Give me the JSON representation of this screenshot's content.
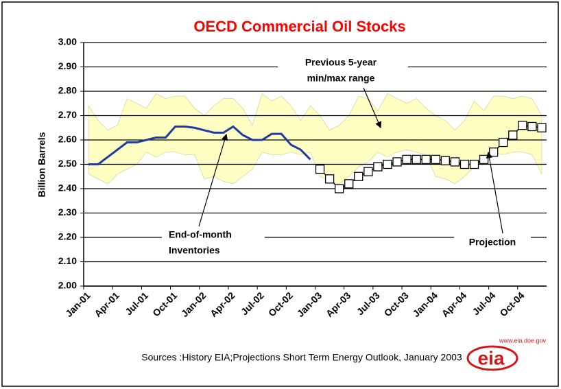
{
  "chart_data": {
    "type": "line",
    "title": "OECD Commercial Oil Stocks",
    "ylabel": "Billion Barrels",
    "categories": [
      "Jan-01",
      null,
      null,
      "Apr-01",
      null,
      null,
      "Jul-01",
      null,
      null,
      "Oct-01",
      null,
      null,
      "Jan-02",
      null,
      null,
      "Apr-02",
      null,
      null,
      "Jul-02",
      null,
      null,
      "Oct-02",
      null,
      null,
      "Jan-03",
      null,
      null,
      "Apr-03",
      null,
      null,
      "Jul-03",
      null,
      null,
      "Oct-03",
      null,
      null,
      "Jan-04",
      null,
      null,
      "Apr-04",
      null,
      null,
      "Jul-04",
      null,
      null,
      "Oct-04",
      null,
      null
    ],
    "range": {
      "color": "#ffffc4",
      "max": [
        2.74,
        2.68,
        2.64,
        2.66,
        2.77,
        2.75,
        2.73,
        2.79,
        2.77,
        2.78,
        2.78,
        2.73,
        2.7,
        2.74,
        2.77,
        2.77,
        2.73,
        2.66,
        2.79,
        2.76,
        2.78,
        2.74,
        2.68,
        2.74,
        2.7,
        2.64,
        2.66,
        2.7,
        2.78,
        2.77,
        2.72,
        2.79,
        2.77,
        2.75,
        2.77,
        2.73,
        2.7,
        2.68,
        2.64,
        2.68,
        2.76,
        2.72,
        2.78,
        2.78,
        2.77,
        2.78,
        2.77,
        2.7
      ],
      "min": [
        2.46,
        2.44,
        2.42,
        2.46,
        2.48,
        2.5,
        2.55,
        2.53,
        2.55,
        2.55,
        2.54,
        2.54,
        2.44,
        2.45,
        2.43,
        2.42,
        2.45,
        2.48,
        2.55,
        2.54,
        2.54,
        2.55,
        2.54,
        2.55,
        2.45,
        2.43,
        2.42,
        2.45,
        2.49,
        2.51,
        2.55,
        2.53,
        2.55,
        2.56,
        2.55,
        2.54,
        2.45,
        2.44,
        2.42,
        2.45,
        2.49,
        2.52,
        2.55,
        2.54,
        2.55,
        2.55,
        2.54,
        2.46
      ]
    },
    "series": [
      {
        "color": "#1f3aa0",
        "marker": "none",
        "values": [
          2.5,
          2.5,
          2.53,
          2.56,
          2.59,
          2.59,
          2.6,
          2.61,
          2.61,
          2.655,
          2.655,
          2.65,
          2.64,
          2.63,
          2.63,
          2.655,
          2.62,
          2.6,
          2.6,
          2.625,
          2.625,
          2.58,
          2.56,
          2.52,
          null,
          null,
          null,
          null,
          null,
          null,
          null,
          null,
          null,
          null,
          null,
          null,
          null,
          null,
          null,
          null,
          null,
          null,
          null,
          null,
          null,
          null,
          null,
          null
        ]
      },
      {
        "color": "#000000",
        "marker": "square",
        "values": [
          null,
          null,
          null,
          null,
          null,
          null,
          null,
          null,
          null,
          null,
          null,
          null,
          null,
          null,
          null,
          null,
          null,
          null,
          null,
          null,
          null,
          null,
          null,
          null,
          2.48,
          2.44,
          2.4,
          2.42,
          2.45,
          2.47,
          2.49,
          2.5,
          2.51,
          2.52,
          2.52,
          2.52,
          2.52,
          2.515,
          2.51,
          2.5,
          2.5,
          2.52,
          2.55,
          2.59,
          2.62,
          2.66,
          2.655,
          2.65
        ]
      }
    ],
    "ylim": [
      2.0,
      3.0
    ],
    "yticks": [
      {
        "value": 2.0,
        "label": "2.00"
      },
      {
        "value": 2.1,
        "label": "2.10"
      },
      {
        "value": 2.2,
        "label": "2.20"
      },
      {
        "value": 2.3,
        "label": "2.30"
      },
      {
        "value": 2.4,
        "label": "2.40"
      },
      {
        "value": 2.5,
        "label": "2.50"
      },
      {
        "value": 2.6,
        "label": "2.60"
      },
      {
        "value": 2.7,
        "label": "2.70"
      },
      {
        "value": 2.8,
        "label": "2.80"
      },
      {
        "value": 2.9,
        "label": "2.90"
      },
      {
        "value": 3.0,
        "label": "3.00"
      }
    ],
    "grid": true,
    "annotations": [
      {
        "lines": [
          "Previous 5-year",
          "min/max range"
        ]
      },
      {
        "lines": [
          "End-of-month",
          "Inventories"
        ]
      },
      {
        "lines": [
          "Projection"
        ]
      }
    ],
    "source": "Sources :History EIA;Projections  Short  Term Energy Outlook, January 2003",
    "logo": {
      "text": "eia",
      "url": "www.eia.doe.gov"
    }
  }
}
